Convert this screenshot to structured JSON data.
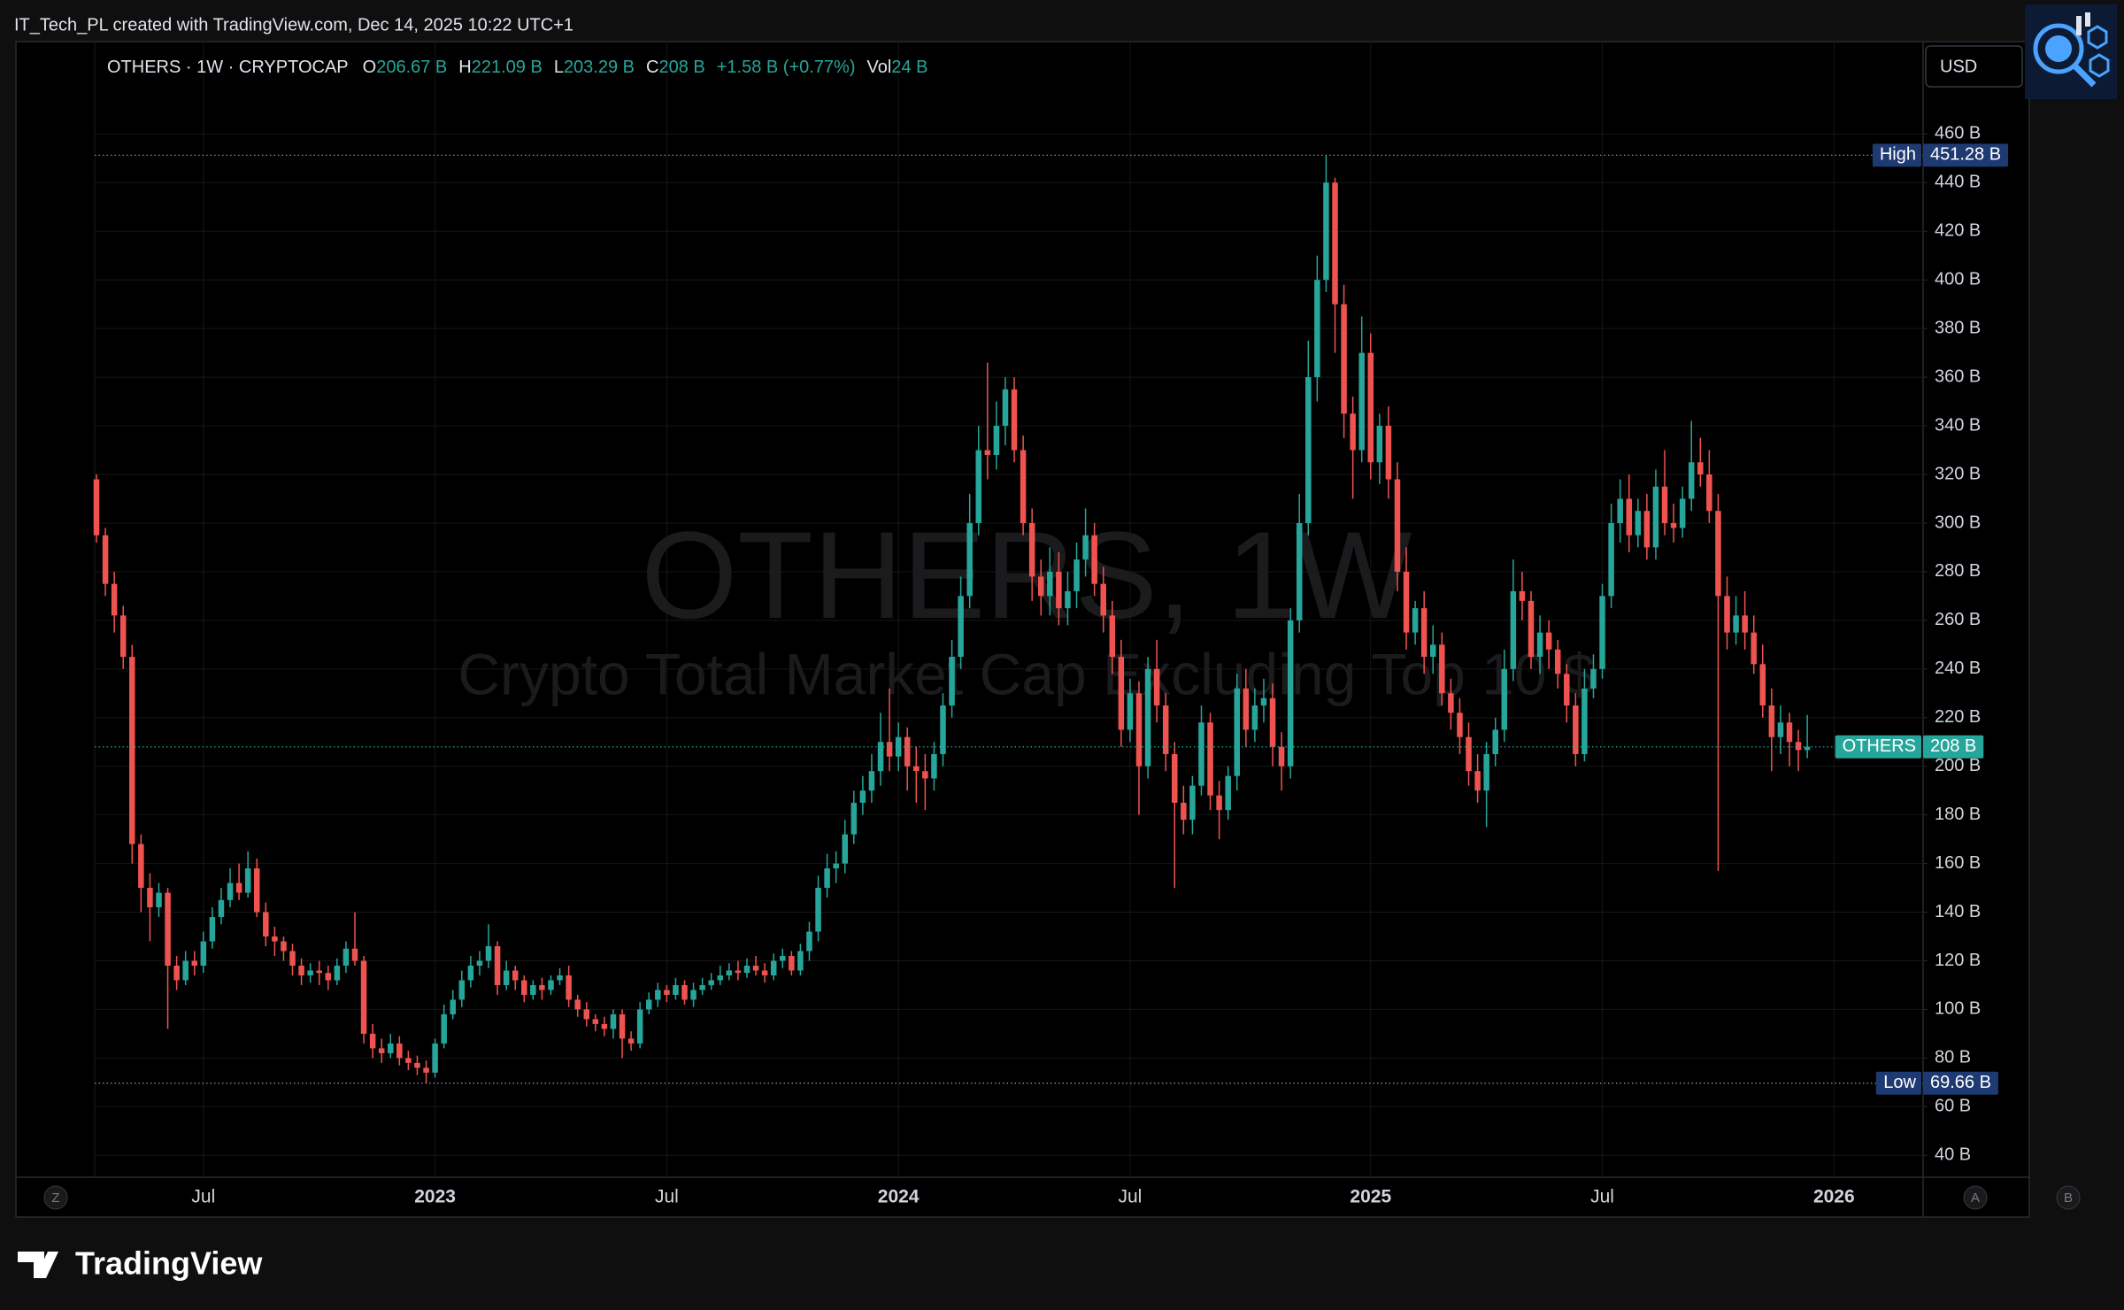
{
  "credit": "IT_Tech_PL created with TradingView.com, Dec 14, 2025 10:22 UTC+1",
  "brand": "TradingView",
  "axis_buttons": [
    "Z",
    "A",
    "B"
  ],
  "chart_data": {
    "type": "candlestick",
    "symbol_line": "OTHERS · 1W · CRYPTOCAP",
    "ohlc_legend": [
      {
        "key": "O",
        "value": "206.67 B"
      },
      {
        "key": "H",
        "value": "221.09 B"
      },
      {
        "key": "L",
        "value": "203.29 B"
      },
      {
        "key": "C",
        "value": "208 B"
      }
    ],
    "change": "+1.58 B (+0.77%)",
    "volume": {
      "key": "Vol",
      "value": "24 B"
    },
    "currency": "USD",
    "watermark": [
      "OTHERS, 1W",
      "Crypto Total Market Cap Excluding Top 10 $"
    ],
    "grid": true,
    "xlim": [
      -0.2,
      205
    ],
    "xticks": [
      {
        "value": 12,
        "label": "Jul"
      },
      {
        "value": 38,
        "label": "2023"
      },
      {
        "value": 64,
        "label": "Jul"
      },
      {
        "value": 90,
        "label": "2024"
      },
      {
        "value": 116,
        "label": "Jul"
      },
      {
        "value": 143,
        "label": "2025"
      },
      {
        "value": 169,
        "label": "Jul"
      },
      {
        "value": 195,
        "label": "2026"
      }
    ],
    "ylim": [
      31,
      498
    ],
    "yticks": [
      {
        "value": 40,
        "label": "40 B"
      },
      {
        "value": 60,
        "label": "60 B"
      },
      {
        "value": 80,
        "label": "80 B"
      },
      {
        "value": 100,
        "label": "100 B"
      },
      {
        "value": 120,
        "label": "120 B"
      },
      {
        "value": 140,
        "label": "140 B"
      },
      {
        "value": 160,
        "label": "160 B"
      },
      {
        "value": 180,
        "label": "180 B"
      },
      {
        "value": 200,
        "label": "200 B"
      },
      {
        "value": 220,
        "label": "220 B"
      },
      {
        "value": 240,
        "label": "240 B"
      },
      {
        "value": 260,
        "label": "260 B"
      },
      {
        "value": 280,
        "label": "280 B"
      },
      {
        "value": 300,
        "label": "300 B"
      },
      {
        "value": 320,
        "label": "320 B"
      },
      {
        "value": 340,
        "label": "340 B"
      },
      {
        "value": 360,
        "label": "360 B"
      },
      {
        "value": 380,
        "label": "380 B"
      },
      {
        "value": 400,
        "label": "400 B"
      },
      {
        "value": 420,
        "label": "420 B"
      },
      {
        "value": 440,
        "label": "440 B"
      },
      {
        "value": 460,
        "label": "460 B"
      }
    ],
    "series": [
      {
        "name": "OTHERS",
        "up_color": "#26a69a",
        "down_color": "#ef5350",
        "open": [
          318,
          295,
          275,
          262,
          245,
          168,
          150,
          142,
          148,
          118,
          112,
          120,
          118,
          128,
          138,
          145,
          152,
          148,
          158,
          140,
          130,
          128,
          124,
          118,
          114,
          116,
          115,
          112,
          118,
          125,
          120,
          90,
          84,
          82,
          86,
          80,
          78,
          76,
          74,
          86,
          98,
          104,
          112,
          118,
          120,
          126,
          110,
          116,
          112,
          106,
          110,
          108,
          112,
          114,
          104,
          100,
          96,
          94,
          92,
          98,
          88,
          86,
          100,
          104,
          108,
          106,
          110,
          104,
          108,
          110,
          112,
          114,
          116,
          115,
          118,
          116,
          114,
          120,
          122,
          116,
          124,
          132,
          150,
          158,
          160,
          172,
          185,
          190,
          198,
          210,
          204,
          212,
          200,
          198,
          195,
          205,
          225,
          245,
          270,
          300,
          330,
          328,
          340,
          355,
          330,
          300,
          278,
          270,
          280,
          265,
          272,
          285,
          295,
          275,
          262,
          245,
          215,
          230,
          200,
          240,
          225,
          205,
          185,
          178,
          192,
          218,
          188,
          182,
          196,
          232,
          215,
          225,
          228,
          208,
          200,
          260,
          300,
          360,
          400,
          440,
          390,
          345,
          330,
          370,
          325,
          340,
          318,
          280,
          255,
          265,
          245,
          250,
          230,
          222,
          212,
          198,
          190,
          205,
          215,
          240,
          272,
          268,
          245,
          255,
          248,
          238,
          225,
          205,
          232,
          240,
          270,
          300,
          310,
          295,
          305,
          290,
          315,
          300,
          298,
          310,
          325,
          320,
          305,
          270,
          255,
          262,
          255,
          242,
          225,
          212,
          218,
          210,
          206.67
        ],
        "high": [
          320,
          298,
          280,
          266,
          250,
          172,
          156,
          152,
          150,
          122,
          124,
          124,
          132,
          142,
          150,
          158,
          160,
          165,
          162,
          144,
          134,
          130,
          127,
          121,
          119,
          120,
          118,
          121,
          128,
          140,
          122,
          94,
          88,
          90,
          89,
          83,
          81,
          79,
          88,
          102,
          108,
          116,
          122,
          124,
          135,
          128,
          120,
          118,
          114,
          112,
          113,
          114,
          117,
          118,
          106,
          103,
          98,
          97,
          100,
          100,
          91,
          103,
          107,
          111,
          110,
          113,
          112,
          111,
          113,
          115,
          118,
          119,
          120,
          121,
          122,
          119,
          123,
          125,
          124,
          127,
          136,
          155,
          164,
          165,
          178,
          190,
          196,
          205,
          222,
          232,
          218,
          216,
          208,
          205,
          210,
          230,
          252,
          278,
          312,
          340,
          366,
          350,
          360,
          360,
          336,
          306,
          285,
          290,
          288,
          280,
          292,
          306,
          300,
          282,
          268,
          252,
          236,
          235,
          245,
          252,
          230,
          210,
          192,
          196,
          225,
          222,
          194,
          200,
          238,
          240,
          232,
          236,
          234,
          214,
          265,
          312,
          375,
          410,
          451.28,
          442,
          398,
          352,
          385,
          378,
          345,
          348,
          325,
          290,
          268,
          272,
          258,
          255,
          236,
          228,
          218,
          205,
          210,
          220,
          248,
          285,
          280,
          272,
          262,
          260,
          252,
          242,
          230,
          240,
          246,
          275,
          308,
          318,
          320,
          310,
          312,
          322,
          330,
          308,
          315,
          342,
          335,
          330,
          312,
          278,
          270,
          272,
          262,
          250,
          232,
          225,
          222,
          215,
          221.09
        ],
        "low": [
          292,
          270,
          255,
          240,
          160,
          140,
          128,
          138,
          92,
          108,
          110,
          114,
          115,
          125,
          135,
          142,
          145,
          146,
          138,
          126,
          122,
          120,
          114,
          110,
          111,
          110,
          108,
          110,
          115,
          118,
          86,
          80,
          78,
          80,
          77,
          75,
          73,
          69.66,
          72,
          84,
          96,
          101,
          109,
          114,
          117,
          106,
          108,
          108,
          103,
          104,
          104,
          106,
          110,
          101,
          97,
          93,
          91,
          89,
          88,
          80,
          83,
          84,
          98,
          101,
          103,
          104,
          102,
          101,
          106,
          108,
          110,
          112,
          112,
          113,
          114,
          111,
          112,
          117,
          114,
          114,
          120,
          128,
          146,
          152,
          156,
          168,
          180,
          185,
          192,
          198,
          198,
          190,
          185,
          182,
          190,
          200,
          220,
          240,
          265,
          295,
          318,
          322,
          332,
          325,
          295,
          268,
          262,
          262,
          258,
          258,
          265,
          278,
          270,
          255,
          238,
          208,
          210,
          180,
          195,
          218,
          198,
          150,
          172,
          172,
          188,
          182,
          170,
          178,
          190,
          208,
          210,
          218,
          200,
          190,
          195,
          255,
          295,
          350,
          395,
          370,
          335,
          310,
          325,
          318,
          316,
          310,
          272,
          248,
          250,
          238,
          238,
          225,
          215,
          205,
          192,
          185,
          175,
          200,
          210,
          235,
          260,
          240,
          238,
          240,
          232,
          218,
          200,
          202,
          228,
          236,
          265,
          292,
          288,
          290,
          285,
          285,
          295,
          292,
          294,
          305,
          315,
          300,
          157,
          248,
          250,
          248,
          238,
          220,
          198,
          205,
          200,
          198,
          203.29
        ],
        "close": [
          295,
          275,
          262,
          245,
          168,
          150,
          142,
          148,
          118,
          112,
          120,
          118,
          128,
          138,
          145,
          152,
          148,
          158,
          140,
          130,
          128,
          124,
          118,
          114,
          116,
          115,
          112,
          118,
          125,
          120,
          90,
          84,
          82,
          86,
          80,
          78,
          76,
          74,
          86,
          98,
          104,
          112,
          118,
          120,
          126,
          110,
          116,
          112,
          106,
          110,
          108,
          112,
          114,
          104,
          100,
          96,
          94,
          92,
          98,
          88,
          86,
          100,
          104,
          108,
          106,
          110,
          104,
          108,
          110,
          112,
          114,
          116,
          115,
          118,
          116,
          114,
          120,
          122,
          116,
          124,
          132,
          150,
          158,
          160,
          172,
          185,
          190,
          198,
          210,
          204,
          212,
          200,
          198,
          195,
          205,
          225,
          245,
          270,
          300,
          330,
          328,
          340,
          355,
          330,
          300,
          278,
          270,
          280,
          265,
          272,
          285,
          295,
          275,
          262,
          245,
          215,
          230,
          200,
          240,
          225,
          205,
          185,
          178,
          192,
          218,
          188,
          182,
          196,
          232,
          215,
          225,
          228,
          208,
          200,
          260,
          300,
          360,
          400,
          440,
          390,
          345,
          330,
          370,
          325,
          340,
          318,
          280,
          255,
          265,
          245,
          250,
          230,
          222,
          212,
          198,
          190,
          205,
          215,
          240,
          272,
          268,
          245,
          255,
          248,
          238,
          225,
          205,
          232,
          240,
          270,
          300,
          310,
          295,
          305,
          290,
          315,
          300,
          298,
          310,
          325,
          320,
          305,
          270,
          255,
          262,
          255,
          242,
          225,
          212,
          218,
          210,
          206.67,
          208
        ]
      }
    ],
    "markers": [
      {
        "name": "High",
        "value": 451.28,
        "label": "451.28 B",
        "color": "#1e3a72",
        "line_color": "#7d8fa8"
      },
      {
        "name": "Low",
        "value": 69.66,
        "label": "69.66 B",
        "color": "#1e3a72",
        "line_color": "#7d8fa8"
      },
      {
        "name": "OTHERS",
        "value": 208,
        "label": "208 B",
        "color": "#26a69a",
        "line_color": "#26a69a"
      }
    ]
  }
}
